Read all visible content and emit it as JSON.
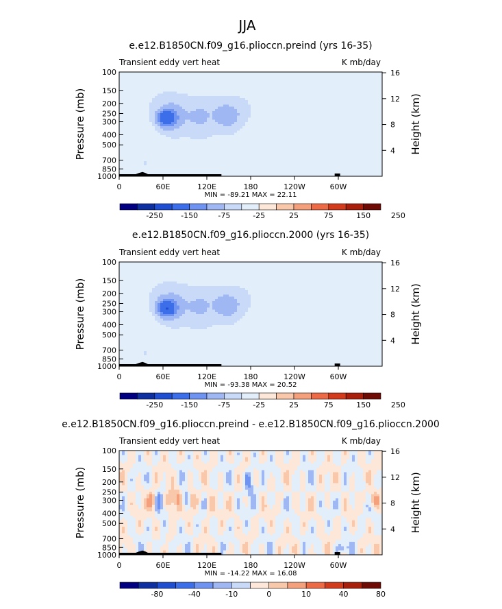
{
  "figure": {
    "title": "JJA"
  },
  "colors": {
    "palette": [
      "#000080",
      "#0d2fa0",
      "#1f4fd0",
      "#3b6ee8",
      "#6e93f0",
      "#9fb8f4",
      "#c8daf8",
      "#e3eefb",
      "#fde7d8",
      "#f9c8ab",
      "#f4a07c",
      "#ec6a46",
      "#d23b1c",
      "#a8200c",
      "#6e0b05"
    ]
  },
  "chart_data": [
    {
      "type": "heatmap",
      "title": "e.e12.B1850CN.f09_g16.plioccn.preind (yrs 16-35)",
      "left_label": "Transient eddy vert heat",
      "right_label": "K mb/day",
      "ylabel": "Pressure (mb)",
      "ylabel_right": "Height (km)",
      "y_ticks": [
        1000,
        850,
        700,
        500,
        400,
        300,
        250,
        200,
        150,
        100
      ],
      "y_right_ticks": [
        4,
        8,
        12,
        16
      ],
      "x_ticks": [
        "0",
        "60E",
        "120E",
        "180",
        "120W",
        "60W"
      ],
      "x_tick_lons": [
        0,
        60,
        120,
        180,
        240,
        300
      ],
      "ylim": [
        1000,
        100
      ],
      "xlim": [
        0,
        360
      ],
      "minmax": "MIN = -89.21   MAX =  22.11",
      "colorbar_labels": [
        "-250",
        "-150",
        "-75",
        "-25",
        "25",
        "75",
        "150",
        "250"
      ],
      "field": "preind"
    },
    {
      "type": "heatmap",
      "title": "e.e12.B1850CN.f09_g16.plioccn.2000 (yrs 16-35)",
      "left_label": "Transient eddy vert heat",
      "right_label": "K mb/day",
      "ylabel": "Pressure (mb)",
      "ylabel_right": "Height (km)",
      "y_ticks": [
        1000,
        850,
        700,
        500,
        400,
        300,
        250,
        200,
        150,
        100
      ],
      "y_right_ticks": [
        4,
        8,
        12,
        16
      ],
      "x_ticks": [
        "0",
        "60E",
        "120E",
        "180",
        "120W",
        "60W"
      ],
      "x_tick_lons": [
        0,
        60,
        120,
        180,
        240,
        300
      ],
      "ylim": [
        1000,
        100
      ],
      "xlim": [
        0,
        360
      ],
      "minmax": "MIN = -93.38   MAX =  20.52",
      "colorbar_labels": [
        "-250",
        "-150",
        "-75",
        "-25",
        "25",
        "75",
        "150",
        "250"
      ],
      "field": "y2000"
    },
    {
      "type": "heatmap",
      "title": "e.e12.B1850CN.f09_g16.plioccn.preind - e.e12.B1850CN.f09_g16.plioccn.2000",
      "left_label": "Transient eddy vert heat",
      "right_label": "K mb/day",
      "ylabel": "Pressure (mb)",
      "ylabel_right": "Height (km)",
      "y_ticks": [
        1000,
        850,
        700,
        500,
        400,
        300,
        250,
        200,
        150,
        100
      ],
      "y_right_ticks": [
        4,
        8,
        12,
        16
      ],
      "x_ticks": [
        "0",
        "60E",
        "120E",
        "180",
        "120W",
        "60W"
      ],
      "x_tick_lons": [
        0,
        60,
        120,
        180,
        240,
        300
      ],
      "ylim": [
        1000,
        100
      ],
      "xlim": [
        0,
        360
      ],
      "minmax": "MIN = -14.22   MAX =  16.08",
      "colorbar_labels": [
        "-80",
        "-40",
        "-10",
        "0",
        "10",
        "40",
        "80"
      ],
      "field": "diff"
    }
  ]
}
